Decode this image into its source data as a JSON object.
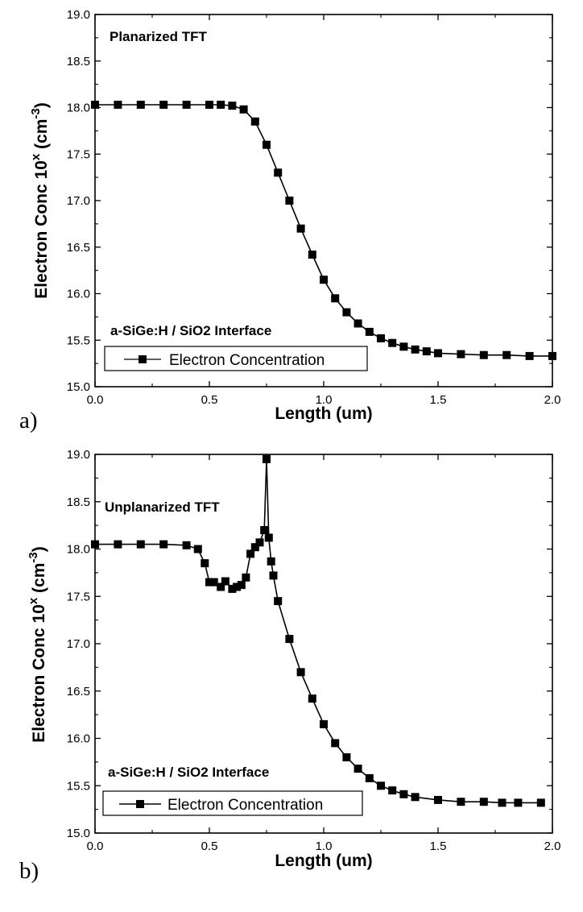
{
  "colors": {
    "line": "#000000",
    "marker": "#000000",
    "background": "#ffffff"
  },
  "chart_data": [
    {
      "type": "line",
      "panel_label": "a)",
      "title": "Planarized TFT",
      "annotation": "a-SiGe:H / SiO2  Interface",
      "xlabel": "Length (um)",
      "ylabel": {
        "main": "Electron Conc 10",
        "sup_x": "x",
        "unit_open": " (cm",
        "unit_sup": "-3",
        "unit_close": ")"
      },
      "xlim": [
        0,
        2.0
      ],
      "ylim": [
        15.0,
        19.0
      ],
      "xticks": [
        "0.0",
        "0.5",
        "1.0",
        "1.5",
        "2.0"
      ],
      "yticks": [
        "15.0",
        "15.5",
        "16.0",
        "16.5",
        "17.0",
        "17.5",
        "18.0",
        "18.5",
        "19.0"
      ],
      "legend": {
        "label": "Electron Concentration",
        "position": "bottom-left"
      },
      "series": [
        {
          "name": "Electron Concentration",
          "marker": "square",
          "x": [
            0.0,
            0.1,
            0.2,
            0.3,
            0.4,
            0.5,
            0.55,
            0.6,
            0.65,
            0.7,
            0.75,
            0.8,
            0.85,
            0.9,
            0.95,
            1.0,
            1.05,
            1.1,
            1.15,
            1.2,
            1.25,
            1.3,
            1.35,
            1.4,
            1.45,
            1.5,
            1.6,
            1.7,
            1.8,
            1.9,
            2.0
          ],
          "y": [
            18.03,
            18.03,
            18.03,
            18.03,
            18.03,
            18.03,
            18.03,
            18.02,
            17.98,
            17.85,
            17.6,
            17.3,
            17.0,
            16.7,
            16.42,
            16.15,
            15.95,
            15.8,
            15.68,
            15.59,
            15.52,
            15.47,
            15.43,
            15.4,
            15.38,
            15.36,
            15.35,
            15.34,
            15.34,
            15.33,
            15.33
          ]
        }
      ]
    },
    {
      "type": "line",
      "panel_label": "b)",
      "title": "Unplanarized TFT",
      "annotation": "a-SiGe:H / SiO2  Interface",
      "xlabel": "Length (um)",
      "ylabel": {
        "main": "Electron Conc 10",
        "sup_x": "x",
        "unit_open": " (cm",
        "unit_sup": "-3",
        "unit_close": ")"
      },
      "xlim": [
        0,
        2.0
      ],
      "ylim": [
        15.0,
        19.0
      ],
      "xticks": [
        "0.0",
        "0.5",
        "1.0",
        "1.5",
        "2.0"
      ],
      "yticks": [
        "15.0",
        "15.5",
        "16.0",
        "16.5",
        "17.0",
        "17.5",
        "18.0",
        "18.5",
        "19.0"
      ],
      "legend": {
        "label": "Electron Concentration",
        "position": "bottom-left"
      },
      "series": [
        {
          "name": "Electron Concentration",
          "marker": "square",
          "x": [
            0.0,
            0.1,
            0.2,
            0.3,
            0.4,
            0.45,
            0.48,
            0.5,
            0.52,
            0.55,
            0.57,
            0.6,
            0.62,
            0.64,
            0.66,
            0.68,
            0.7,
            0.72,
            0.74,
            0.75,
            0.76,
            0.77,
            0.78,
            0.8,
            0.85,
            0.9,
            0.95,
            1.0,
            1.05,
            1.1,
            1.15,
            1.2,
            1.25,
            1.3,
            1.35,
            1.4,
            1.5,
            1.6,
            1.7,
            1.78,
            1.85,
            1.95
          ],
          "y": [
            18.05,
            18.05,
            18.05,
            18.05,
            18.04,
            18.0,
            17.85,
            17.65,
            17.65,
            17.6,
            17.66,
            17.58,
            17.6,
            17.62,
            17.7,
            17.95,
            18.02,
            18.07,
            18.2,
            18.95,
            18.12,
            17.87,
            17.72,
            17.45,
            17.05,
            16.7,
            16.42,
            16.15,
            15.95,
            15.8,
            15.68,
            15.58,
            15.5,
            15.45,
            15.41,
            15.38,
            15.35,
            15.33,
            15.33,
            15.32,
            15.32,
            15.32
          ]
        }
      ]
    }
  ]
}
